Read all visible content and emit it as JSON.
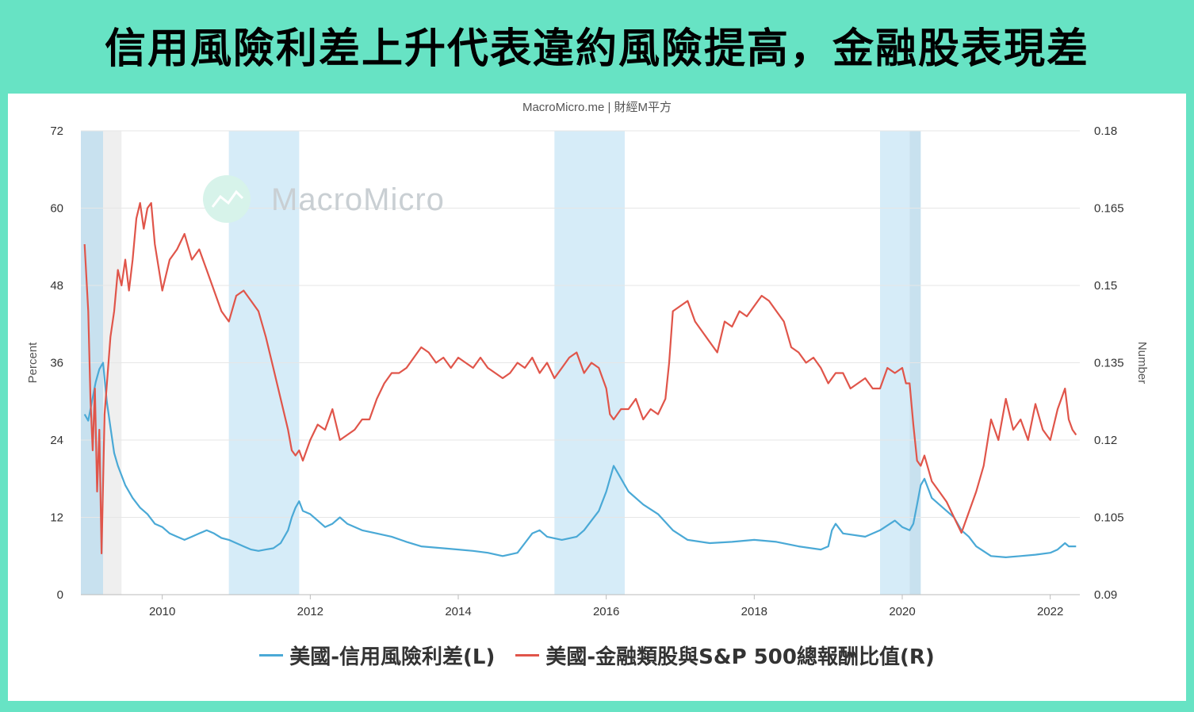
{
  "title": "信用風險利差上升代表違約風險提高，金融股表現差",
  "credit": "MacroMicro.me | 財經M平方",
  "watermark": "MacroMicro",
  "colors": {
    "background": "#67e3c4",
    "spread": "#4aa9d6",
    "ratio": "#e0554a",
    "band": "#d6ecf8",
    "band_dark": "#c8e1ef",
    "band_gray": "#efefef"
  },
  "chart_data": {
    "type": "line",
    "x_range": [
      2008.9,
      2022.4
    ],
    "x_ticks": [
      {
        "v": 2010,
        "label": "2010"
      },
      {
        "v": 2012,
        "label": "2012"
      },
      {
        "v": 2014,
        "label": "2014"
      },
      {
        "v": 2016,
        "label": "2016"
      },
      {
        "v": 2018,
        "label": "2018"
      },
      {
        "v": 2020,
        "label": "2020"
      },
      {
        "v": 2022,
        "label": "2022"
      }
    ],
    "y_left": {
      "label": "Percent",
      "range": [
        0,
        72
      ],
      "ticks": [
        {
          "v": 0,
          "label": "0"
        },
        {
          "v": 12,
          "label": "12"
        },
        {
          "v": 24,
          "label": "24"
        },
        {
          "v": 36,
          "label": "36"
        },
        {
          "v": 48,
          "label": "48"
        },
        {
          "v": 60,
          "label": "60"
        },
        {
          "v": 72,
          "label": "72"
        }
      ]
    },
    "y_right": {
      "label": "Number",
      "range": [
        0.09,
        0.18
      ],
      "ticks": [
        {
          "v": 0.09,
          "label": "0.09"
        },
        {
          "v": 0.105,
          "label": "0.105"
        },
        {
          "v": 0.12,
          "label": "0.12"
        },
        {
          "v": 0.135,
          "label": "0.135"
        },
        {
          "v": 0.15,
          "label": "0.15"
        },
        {
          "v": 0.165,
          "label": "0.165"
        },
        {
          "v": 0.18,
          "label": "0.18"
        }
      ]
    },
    "shaded_periods": [
      {
        "start": 2008.9,
        "end": 2009.2,
        "kind": "band_dark"
      },
      {
        "start": 2009.2,
        "end": 2009.45,
        "kind": "band_gray"
      },
      {
        "start": 2010.9,
        "end": 2011.85,
        "kind": "band"
      },
      {
        "start": 2015.3,
        "end": 2016.25,
        "kind": "band"
      },
      {
        "start": 2019.7,
        "end": 2020.1,
        "kind": "band"
      },
      {
        "start": 2020.1,
        "end": 2020.25,
        "kind": "band_dark"
      }
    ],
    "grid": true,
    "series": [
      {
        "name": "美國-信用風險利差(L)",
        "axis": "left",
        "points": [
          [
            2008.95,
            28
          ],
          [
            2009.0,
            27
          ],
          [
            2009.05,
            30
          ],
          [
            2009.1,
            33
          ],
          [
            2009.15,
            35
          ],
          [
            2009.2,
            36
          ],
          [
            2009.25,
            30
          ],
          [
            2009.3,
            26
          ],
          [
            2009.35,
            22
          ],
          [
            2009.4,
            20
          ],
          [
            2009.5,
            17
          ],
          [
            2009.6,
            15
          ],
          [
            2009.7,
            13.5
          ],
          [
            2009.8,
            12.5
          ],
          [
            2009.9,
            11
          ],
          [
            2010.0,
            10.5
          ],
          [
            2010.1,
            9.5
          ],
          [
            2010.2,
            9
          ],
          [
            2010.3,
            8.5
          ],
          [
            2010.4,
            9
          ],
          [
            2010.5,
            9.5
          ],
          [
            2010.6,
            10
          ],
          [
            2010.7,
            9.5
          ],
          [
            2010.8,
            8.8
          ],
          [
            2010.9,
            8.5
          ],
          [
            2011.0,
            8
          ],
          [
            2011.1,
            7.5
          ],
          [
            2011.2,
            7
          ],
          [
            2011.3,
            6.8
          ],
          [
            2011.4,
            7
          ],
          [
            2011.5,
            7.2
          ],
          [
            2011.6,
            8
          ],
          [
            2011.7,
            10
          ],
          [
            2011.75,
            12
          ],
          [
            2011.8,
            13.5
          ],
          [
            2011.85,
            14.5
          ],
          [
            2011.9,
            13
          ],
          [
            2012.0,
            12.5
          ],
          [
            2012.1,
            11.5
          ],
          [
            2012.2,
            10.5
          ],
          [
            2012.3,
            11
          ],
          [
            2012.4,
            12
          ],
          [
            2012.5,
            11
          ],
          [
            2012.7,
            10
          ],
          [
            2012.9,
            9.5
          ],
          [
            2013.1,
            9
          ],
          [
            2013.3,
            8.2
          ],
          [
            2013.5,
            7.5
          ],
          [
            2013.8,
            7.2
          ],
          [
            2014.0,
            7
          ],
          [
            2014.2,
            6.8
          ],
          [
            2014.4,
            6.5
          ],
          [
            2014.6,
            6
          ],
          [
            2014.8,
            6.5
          ],
          [
            2014.9,
            8
          ],
          [
            2015.0,
            9.5
          ],
          [
            2015.1,
            10
          ],
          [
            2015.2,
            9
          ],
          [
            2015.4,
            8.5
          ],
          [
            2015.6,
            9
          ],
          [
            2015.7,
            10
          ],
          [
            2015.8,
            11.5
          ],
          [
            2015.9,
            13
          ],
          [
            2016.0,
            16
          ],
          [
            2016.1,
            20
          ],
          [
            2016.15,
            19
          ],
          [
            2016.3,
            16
          ],
          [
            2016.5,
            14
          ],
          [
            2016.7,
            12.5
          ],
          [
            2016.9,
            10
          ],
          [
            2017.1,
            8.5
          ],
          [
            2017.4,
            8
          ],
          [
            2017.7,
            8.2
          ],
          [
            2018.0,
            8.5
          ],
          [
            2018.3,
            8.2
          ],
          [
            2018.6,
            7.5
          ],
          [
            2018.9,
            7
          ],
          [
            2019.0,
            7.5
          ],
          [
            2019.05,
            10
          ],
          [
            2019.1,
            11
          ],
          [
            2019.2,
            9.5
          ],
          [
            2019.5,
            9
          ],
          [
            2019.7,
            10
          ],
          [
            2019.9,
            11.5
          ],
          [
            2020.0,
            10.5
          ],
          [
            2020.1,
            10
          ],
          [
            2020.15,
            11
          ],
          [
            2020.2,
            14
          ],
          [
            2020.25,
            17
          ],
          [
            2020.3,
            18
          ],
          [
            2020.4,
            15
          ],
          [
            2020.5,
            14
          ],
          [
            2020.6,
            13
          ],
          [
            2020.7,
            12
          ],
          [
            2020.8,
            10
          ],
          [
            2020.9,
            9
          ],
          [
            2021.0,
            7.5
          ],
          [
            2021.2,
            6
          ],
          [
            2021.4,
            5.8
          ],
          [
            2021.6,
            6
          ],
          [
            2021.8,
            6.2
          ],
          [
            2022.0,
            6.5
          ],
          [
            2022.1,
            7
          ],
          [
            2022.2,
            8
          ],
          [
            2022.25,
            7.5
          ],
          [
            2022.35,
            7.5
          ]
        ]
      },
      {
        "name": "美國-金融類股與S&P 500總報酬比值(R)",
        "axis": "right",
        "points": [
          [
            2008.95,
            0.158
          ],
          [
            2009.0,
            0.145
          ],
          [
            2009.03,
            0.128
          ],
          [
            2009.06,
            0.118
          ],
          [
            2009.09,
            0.13
          ],
          [
            2009.12,
            0.11
          ],
          [
            2009.15,
            0.122
          ],
          [
            2009.18,
            0.098
          ],
          [
            2009.22,
            0.125
          ],
          [
            2009.3,
            0.14
          ],
          [
            2009.35,
            0.145
          ],
          [
            2009.4,
            0.153
          ],
          [
            2009.45,
            0.15
          ],
          [
            2009.5,
            0.155
          ],
          [
            2009.55,
            0.149
          ],
          [
            2009.6,
            0.155
          ],
          [
            2009.65,
            0.163
          ],
          [
            2009.7,
            0.166
          ],
          [
            2009.75,
            0.161
          ],
          [
            2009.8,
            0.165
          ],
          [
            2009.85,
            0.166
          ],
          [
            2009.9,
            0.158
          ],
          [
            2010.0,
            0.149
          ],
          [
            2010.1,
            0.155
          ],
          [
            2010.2,
            0.157
          ],
          [
            2010.3,
            0.16
          ],
          [
            2010.4,
            0.155
          ],
          [
            2010.5,
            0.157
          ],
          [
            2010.6,
            0.153
          ],
          [
            2010.7,
            0.149
          ],
          [
            2010.8,
            0.145
          ],
          [
            2010.9,
            0.143
          ],
          [
            2011.0,
            0.148
          ],
          [
            2011.1,
            0.149
          ],
          [
            2011.2,
            0.147
          ],
          [
            2011.3,
            0.145
          ],
          [
            2011.4,
            0.14
          ],
          [
            2011.5,
            0.134
          ],
          [
            2011.6,
            0.128
          ],
          [
            2011.7,
            0.122
          ],
          [
            2011.75,
            0.118
          ],
          [
            2011.8,
            0.117
          ],
          [
            2011.85,
            0.118
          ],
          [
            2011.9,
            0.116
          ],
          [
            2012.0,
            0.12
          ],
          [
            2012.1,
            0.123
          ],
          [
            2012.2,
            0.122
          ],
          [
            2012.3,
            0.126
          ],
          [
            2012.4,
            0.12
          ],
          [
            2012.5,
            0.121
          ],
          [
            2012.6,
            0.122
          ],
          [
            2012.7,
            0.124
          ],
          [
            2012.8,
            0.124
          ],
          [
            2012.9,
            0.128
          ],
          [
            2013.0,
            0.131
          ],
          [
            2013.1,
            0.133
          ],
          [
            2013.2,
            0.133
          ],
          [
            2013.3,
            0.134
          ],
          [
            2013.4,
            0.136
          ],
          [
            2013.5,
            0.138
          ],
          [
            2013.6,
            0.137
          ],
          [
            2013.7,
            0.135
          ],
          [
            2013.8,
            0.136
          ],
          [
            2013.9,
            0.134
          ],
          [
            2014.0,
            0.136
          ],
          [
            2014.1,
            0.135
          ],
          [
            2014.2,
            0.134
          ],
          [
            2014.3,
            0.136
          ],
          [
            2014.4,
            0.134
          ],
          [
            2014.5,
            0.133
          ],
          [
            2014.6,
            0.132
          ],
          [
            2014.7,
            0.133
          ],
          [
            2014.8,
            0.135
          ],
          [
            2014.9,
            0.134
          ],
          [
            2015.0,
            0.136
          ],
          [
            2015.1,
            0.133
          ],
          [
            2015.2,
            0.135
          ],
          [
            2015.3,
            0.132
          ],
          [
            2015.4,
            0.134
          ],
          [
            2015.5,
            0.136
          ],
          [
            2015.6,
            0.137
          ],
          [
            2015.7,
            0.133
          ],
          [
            2015.8,
            0.135
          ],
          [
            2015.9,
            0.134
          ],
          [
            2016.0,
            0.13
          ],
          [
            2016.05,
            0.125
          ],
          [
            2016.1,
            0.124
          ],
          [
            2016.2,
            0.126
          ],
          [
            2016.3,
            0.126
          ],
          [
            2016.4,
            0.128
          ],
          [
            2016.5,
            0.124
          ],
          [
            2016.6,
            0.126
          ],
          [
            2016.7,
            0.125
          ],
          [
            2016.8,
            0.128
          ],
          [
            2016.85,
            0.135
          ],
          [
            2016.9,
            0.145
          ],
          [
            2017.0,
            0.146
          ],
          [
            2017.1,
            0.147
          ],
          [
            2017.2,
            0.143
          ],
          [
            2017.3,
            0.141
          ],
          [
            2017.4,
            0.139
          ],
          [
            2017.5,
            0.137
          ],
          [
            2017.6,
            0.143
          ],
          [
            2017.7,
            0.142
          ],
          [
            2017.8,
            0.145
          ],
          [
            2017.9,
            0.144
          ],
          [
            2018.0,
            0.146
          ],
          [
            2018.1,
            0.148
          ],
          [
            2018.2,
            0.147
          ],
          [
            2018.3,
            0.145
          ],
          [
            2018.4,
            0.143
          ],
          [
            2018.5,
            0.138
          ],
          [
            2018.6,
            0.137
          ],
          [
            2018.7,
            0.135
          ],
          [
            2018.8,
            0.136
          ],
          [
            2018.9,
            0.134
          ],
          [
            2019.0,
            0.131
          ],
          [
            2019.1,
            0.133
          ],
          [
            2019.2,
            0.133
          ],
          [
            2019.3,
            0.13
          ],
          [
            2019.4,
            0.131
          ],
          [
            2019.5,
            0.132
          ],
          [
            2019.6,
            0.13
          ],
          [
            2019.7,
            0.13
          ],
          [
            2019.8,
            0.134
          ],
          [
            2019.9,
            0.133
          ],
          [
            2020.0,
            0.134
          ],
          [
            2020.05,
            0.131
          ],
          [
            2020.1,
            0.131
          ],
          [
            2020.15,
            0.123
          ],
          [
            2020.2,
            0.116
          ],
          [
            2020.25,
            0.115
          ],
          [
            2020.3,
            0.117
          ],
          [
            2020.4,
            0.112
          ],
          [
            2020.5,
            0.11
          ],
          [
            2020.6,
            0.108
          ],
          [
            2020.7,
            0.105
          ],
          [
            2020.8,
            0.102
          ],
          [
            2020.9,
            0.106
          ],
          [
            2021.0,
            0.11
          ],
          [
            2021.1,
            0.115
          ],
          [
            2021.2,
            0.124
          ],
          [
            2021.3,
            0.12
          ],
          [
            2021.4,
            0.128
          ],
          [
            2021.5,
            0.122
          ],
          [
            2021.6,
            0.124
          ],
          [
            2021.7,
            0.12
          ],
          [
            2021.8,
            0.127
          ],
          [
            2021.9,
            0.122
          ],
          [
            2022.0,
            0.12
          ],
          [
            2022.1,
            0.126
          ],
          [
            2022.2,
            0.13
          ],
          [
            2022.25,
            0.124
          ],
          [
            2022.3,
            0.122
          ],
          [
            2022.35,
            0.121
          ]
        ]
      }
    ]
  }
}
